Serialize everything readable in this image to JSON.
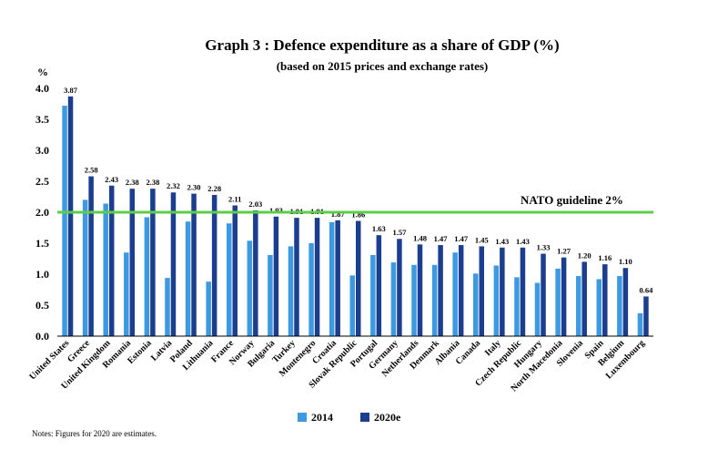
{
  "chart_data": {
    "type": "bar",
    "title": "Graph 3 : Defence expenditure as a share of GDP (%)",
    "subtitle": "(based on 2015 prices and exchange rates)",
    "ylabel": "%",
    "ylim": [
      0,
      4.0
    ],
    "yticks": [
      "0.0",
      "0.5",
      "1.0",
      "1.5",
      "2.0",
      "2.5",
      "3.0",
      "3.5",
      "4.0"
    ],
    "categories": [
      "United States",
      "Greece",
      "United Kingdom",
      "Romania",
      "Estonia",
      "Latvia",
      "Poland",
      "Lithuania",
      "France",
      "Norway",
      "Bulgaria",
      "Turkey",
      "Montenegro",
      "Croatia",
      "Slovak Republic",
      "Portugal",
      "Germany",
      "Netherlands",
      "Denmark",
      "Albania",
      "Canada",
      "Italy",
      "Czech Republic",
      "Hungary",
      "North Macedonia",
      "Slovenia",
      "Spain",
      "Belgium",
      "Luxembourg"
    ],
    "series": [
      {
        "name": "2014",
        "color": "#3d9ae0",
        "values": [
          3.72,
          2.2,
          2.14,
          1.35,
          1.92,
          0.94,
          1.85,
          0.88,
          1.82,
          1.54,
          1.31,
          1.45,
          1.5,
          1.84,
          0.98,
          1.31,
          1.19,
          1.15,
          1.15,
          1.35,
          1.01,
          1.14,
          0.95,
          0.86,
          1.09,
          0.97,
          0.92,
          0.97,
          0.37
        ]
      },
      {
        "name": "2020e",
        "color": "#1b3f8e",
        "values": [
          3.87,
          2.58,
          2.43,
          2.38,
          2.38,
          2.32,
          2.3,
          2.28,
          2.11,
          2.03,
          1.93,
          1.91,
          1.91,
          1.87,
          1.86,
          1.63,
          1.57,
          1.48,
          1.47,
          1.47,
          1.45,
          1.43,
          1.43,
          1.33,
          1.27,
          1.2,
          1.16,
          1.1,
          0.64
        ],
        "labels": [
          "3.87",
          "2.58",
          "2.43",
          "2.38",
          "2.38",
          "2.32",
          "2.30",
          "2.28",
          "2.11",
          "2.03",
          "1.93",
          "1.91",
          "1.91",
          "1.87",
          "1.86",
          "1.63",
          "1.57",
          "1.48",
          "1.47",
          "1.47",
          "1.45",
          "1.43",
          "1.43",
          "1.33",
          "1.27",
          "1.20",
          "1.16",
          "1.10",
          "0.64"
        ]
      }
    ],
    "guideline": {
      "value": 2.0,
      "label": "NATO guideline 2%",
      "color": "#5ccc4a"
    },
    "legend": {
      "placement": "bottom"
    },
    "grid": false
  },
  "note": "Notes: Figures for 2020 are estimates."
}
